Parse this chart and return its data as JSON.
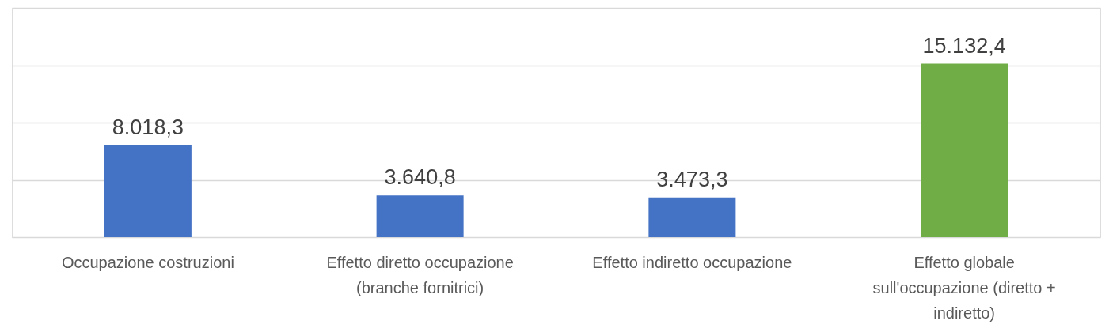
{
  "chart_data": {
    "type": "bar",
    "categories": [
      "Occupazione costruzioni",
      "Effetto diretto occupazione (branche fornitrici)",
      "Effetto indiretto occupazione",
      "Effetto globale sull'occupazione (diretto + indiretto)"
    ],
    "values": [
      8018.3,
      3640.8,
      3473.3,
      15132.4
    ],
    "value_labels": [
      "8.018,3",
      "3.640,8",
      "3.473,3",
      "15.132,4"
    ],
    "colors": [
      "#4472c4",
      "#4472c4",
      "#4472c4",
      "#70ad47"
    ],
    "ylim": [
      0,
      20000
    ],
    "yticks": [
      {
        "value": 0,
        "label": null
      },
      {
        "value": 5000,
        "label": null
      },
      {
        "value": 10000,
        "label": null
      },
      {
        "value": 15000,
        "label": null
      },
      {
        "value": 20000,
        "label": null
      }
    ],
    "tick_labels": "x",
    "grid": "y"
  }
}
